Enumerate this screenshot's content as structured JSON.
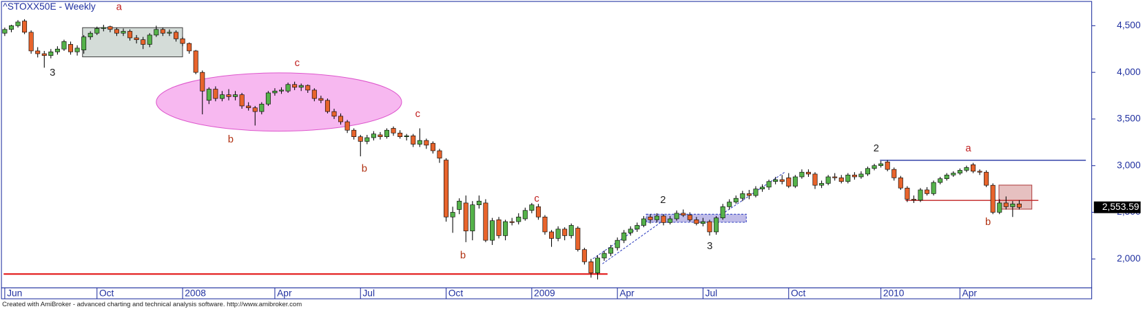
{
  "chart_data": {
    "type": "candlestick",
    "title": "^STOXX50E - Weekly",
    "annotations": [
      "a",
      "3",
      "c",
      "b",
      "c",
      "b",
      "c",
      "b",
      "2",
      "3",
      "2",
      "a",
      "b"
    ],
    "footer": "Created with AmiBroker - advanced charting and technical analysis software. http://www.amibroker.com",
    "up_color": "#55b24a",
    "down_color": "#e8642c",
    "ylim": [
      1690,
      4760
    ],
    "yticks": [
      {
        "value": 2000,
        "label": "2,000"
      },
      {
        "value": 2500,
        "label": "2,500"
      },
      {
        "value": 3000,
        "label": "3,000"
      },
      {
        "value": 3500,
        "label": "3,500"
      },
      {
        "value": 4000,
        "label": "4,000"
      },
      {
        "value": 4500,
        "label": "4,500"
      }
    ],
    "xlim": [
      -0.5,
      165
    ],
    "xticks": [
      {
        "value": 0,
        "label": "Jun"
      },
      {
        "value": 14,
        "label": "Oct"
      },
      {
        "value": 27,
        "label": "2008"
      },
      {
        "value": 41,
        "label": "Apr"
      },
      {
        "value": 54,
        "label": "Jul"
      },
      {
        "value": 67,
        "label": "Oct"
      },
      {
        "value": 80,
        "label": "2009"
      },
      {
        "value": 93,
        "label": "Apr"
      },
      {
        "value": 106,
        "label": "Jul"
      },
      {
        "value": 119,
        "label": "Oct"
      },
      {
        "value": 133,
        "label": "2010"
      },
      {
        "value": 145,
        "label": "Apr"
      }
    ],
    "last_value": {
      "value": 2553.59,
      "label": "2,553.59"
    },
    "ohlc": [
      [
        4420,
        4480,
        4390,
        4460
      ],
      [
        4460,
        4510,
        4430,
        4500
      ],
      [
        4500,
        4560,
        4480,
        4540
      ],
      [
        4550,
        4570,
        4410,
        4430
      ],
      [
        4430,
        4450,
        4200,
        4230
      ],
      [
        4230,
        4270,
        4160,
        4200
      ],
      [
        4200,
        4230,
        4050,
        4180
      ],
      [
        4180,
        4250,
        4150,
        4220
      ],
      [
        4220,
        4280,
        4190,
        4250
      ],
      [
        4250,
        4350,
        4230,
        4330
      ],
      [
        4300,
        4330,
        4190,
        4220
      ],
      [
        4220,
        4290,
        4180,
        4260
      ],
      [
        4240,
        4400,
        4200,
        4380
      ],
      [
        4380,
        4440,
        4350,
        4420
      ],
      [
        4420,
        4490,
        4400,
        4470
      ],
      [
        4470,
        4510,
        4440,
        4480
      ],
      [
        4490,
        4500,
        4430,
        4460
      ],
      [
        4460,
        4480,
        4390,
        4420
      ],
      [
        4420,
        4470,
        4390,
        4440
      ],
      [
        4440,
        4460,
        4340,
        4370
      ],
      [
        4370,
        4400,
        4310,
        4350
      ],
      [
        4350,
        4380,
        4250,
        4300
      ],
      [
        4300,
        4420,
        4270,
        4400
      ],
      [
        4400,
        4500,
        4380,
        4460
      ],
      [
        4460,
        4480,
        4390,
        4420
      ],
      [
        4420,
        4460,
        4390,
        4430
      ],
      [
        4430,
        4450,
        4330,
        4360
      ],
      [
        4360,
        4380,
        4280,
        4310
      ],
      [
        4310,
        4320,
        4200,
        4230
      ],
      [
        4230,
        4240,
        3980,
        4000
      ],
      [
        4000,
        4020,
        3550,
        3800
      ],
      [
        3700,
        3840,
        3660,
        3820
      ],
      [
        3820,
        3850,
        3690,
        3720
      ],
      [
        3720,
        3800,
        3690,
        3760
      ],
      [
        3760,
        3820,
        3700,
        3740
      ],
      [
        3740,
        3800,
        3700,
        3760
      ],
      [
        3760,
        3780,
        3610,
        3640
      ],
      [
        3640,
        3680,
        3590,
        3620
      ],
      [
        3620,
        3640,
        3430,
        3580
      ],
      [
        3580,
        3680,
        3550,
        3660
      ],
      [
        3660,
        3800,
        3640,
        3780
      ],
      [
        3780,
        3830,
        3750,
        3800
      ],
      [
        3800,
        3840,
        3770,
        3810
      ],
      [
        3800,
        3890,
        3780,
        3870
      ],
      [
        3870,
        3900,
        3810,
        3840
      ],
      [
        3840,
        3880,
        3800,
        3860
      ],
      [
        3860,
        3870,
        3780,
        3810
      ],
      [
        3810,
        3830,
        3690,
        3720
      ],
      [
        3720,
        3750,
        3670,
        3700
      ],
      [
        3700,
        3720,
        3560,
        3580
      ],
      [
        3580,
        3610,
        3500,
        3530
      ],
      [
        3530,
        3560,
        3440,
        3470
      ],
      [
        3470,
        3490,
        3350,
        3380
      ],
      [
        3380,
        3400,
        3280,
        3310
      ],
      [
        3310,
        3330,
        3100,
        3260
      ],
      [
        3260,
        3330,
        3230,
        3300
      ],
      [
        3300,
        3370,
        3270,
        3340
      ],
      [
        3330,
        3360,
        3280,
        3310
      ],
      [
        3310,
        3400,
        3290,
        3380
      ],
      [
        3400,
        3420,
        3320,
        3350
      ],
      [
        3350,
        3380,
        3290,
        3310
      ],
      [
        3310,
        3340,
        3270,
        3320
      ],
      [
        3320,
        3340,
        3200,
        3230
      ],
      [
        3230,
        3400,
        3200,
        3270
      ],
      [
        3270,
        3290,
        3180,
        3220
      ],
      [
        3240,
        3260,
        3130,
        3160
      ],
      [
        3160,
        3180,
        3030,
        3080
      ],
      [
        3060,
        3080,
        2400,
        2450
      ],
      [
        2450,
        2560,
        2280,
        2500
      ],
      [
        2530,
        2650,
        2480,
        2620
      ],
      [
        2600,
        2680,
        2180,
        2300
      ],
      [
        2300,
        2620,
        2200,
        2580
      ],
      [
        2580,
        2680,
        2540,
        2620
      ],
      [
        2600,
        2640,
        2180,
        2200
      ],
      [
        2200,
        2440,
        2150,
        2410
      ],
      [
        2420,
        2450,
        2220,
        2250
      ],
      [
        2250,
        2420,
        2200,
        2400
      ],
      [
        2400,
        2440,
        2360,
        2390
      ],
      [
        2400,
        2490,
        2370,
        2450
      ],
      [
        2430,
        2550,
        2410,
        2520
      ],
      [
        2520,
        2600,
        2490,
        2580
      ],
      [
        2560,
        2590,
        2420,
        2450
      ],
      [
        2450,
        2470,
        2260,
        2290
      ],
      [
        2290,
        2310,
        2130,
        2220
      ],
      [
        2220,
        2350,
        2190,
        2320
      ],
      [
        2320,
        2340,
        2200,
        2250
      ],
      [
        2250,
        2380,
        2220,
        2360
      ],
      [
        2330,
        2350,
        2080,
        2100
      ],
      [
        2100,
        2120,
        1940,
        1970
      ],
      [
        1970,
        2000,
        1800,
        1850
      ],
      [
        1850,
        2040,
        1780,
        2010
      ],
      [
        2010,
        2090,
        1980,
        2060
      ],
      [
        2060,
        2150,
        2030,
        2120
      ],
      [
        2120,
        2230,
        2090,
        2200
      ],
      [
        2200,
        2310,
        2170,
        2280
      ],
      [
        2280,
        2350,
        2250,
        2320
      ],
      [
        2320,
        2390,
        2290,
        2360
      ],
      [
        2360,
        2460,
        2340,
        2430
      ],
      [
        2450,
        2480,
        2380,
        2420
      ],
      [
        2420,
        2490,
        2390,
        2460
      ],
      [
        2460,
        2480,
        2360,
        2390
      ],
      [
        2390,
        2460,
        2370,
        2430
      ],
      [
        2430,
        2520,
        2410,
        2490
      ],
      [
        2490,
        2530,
        2450,
        2470
      ],
      [
        2470,
        2500,
        2400,
        2420
      ],
      [
        2420,
        2450,
        2360,
        2380
      ],
      [
        2380,
        2440,
        2350,
        2400
      ],
      [
        2400,
        2420,
        2250,
        2290
      ],
      [
        2290,
        2460,
        2260,
        2440
      ],
      [
        2440,
        2590,
        2420,
        2560
      ],
      [
        2560,
        2640,
        2530,
        2610
      ],
      [
        2610,
        2680,
        2590,
        2650
      ],
      [
        2650,
        2730,
        2620,
        2700
      ],
      [
        2700,
        2740,
        2640,
        2680
      ],
      [
        2680,
        2780,
        2660,
        2750
      ],
      [
        2750,
        2800,
        2720,
        2770
      ],
      [
        2770,
        2850,
        2740,
        2830
      ],
      [
        2830,
        2880,
        2800,
        2850
      ],
      [
        2850,
        2900,
        2800,
        2830
      ],
      [
        2870,
        2920,
        2760,
        2780
      ],
      [
        2780,
        2900,
        2760,
        2880
      ],
      [
        2880,
        2960,
        2860,
        2930
      ],
      [
        2930,
        2960,
        2880,
        2910
      ],
      [
        2910,
        2930,
        2750,
        2790
      ],
      [
        2790,
        2840,
        2760,
        2810
      ],
      [
        2810,
        2900,
        2790,
        2880
      ],
      [
        2880,
        2920,
        2840,
        2870
      ],
      [
        2870,
        2900,
        2810,
        2830
      ],
      [
        2830,
        2920,
        2810,
        2900
      ],
      [
        2900,
        2930,
        2850,
        2880
      ],
      [
        2880,
        2940,
        2860,
        2910
      ],
      [
        2910,
        2990,
        2890,
        2970
      ],
      [
        2970,
        3020,
        2950,
        3000
      ],
      [
        3000,
        3050,
        2980,
        3020
      ],
      [
        3040,
        3060,
        2940,
        2960
      ],
      [
        2960,
        2980,
        2840,
        2870
      ],
      [
        2870,
        2890,
        2740,
        2760
      ],
      [
        2760,
        2780,
        2610,
        2640
      ],
      [
        2640,
        2680,
        2600,
        2630
      ],
      [
        2630,
        2760,
        2610,
        2740
      ],
      [
        2740,
        2770,
        2680,
        2700
      ],
      [
        2700,
        2840,
        2680,
        2820
      ],
      [
        2820,
        2880,
        2800,
        2860
      ],
      [
        2860,
        2920,
        2840,
        2900
      ],
      [
        2900,
        2940,
        2880,
        2920
      ],
      [
        2920,
        2970,
        2900,
        2950
      ],
      [
        2950,
        3000,
        2930,
        2980
      ],
      [
        3010,
        3030,
        2920,
        2940
      ],
      [
        2940,
        2960,
        2900,
        2930
      ],
      [
        2930,
        2950,
        2770,
        2790
      ],
      [
        2790,
        2810,
        2480,
        2500
      ],
      [
        2500,
        2640,
        2480,
        2600
      ],
      [
        2600,
        2670,
        2530,
        2560
      ],
      [
        2560,
        2620,
        2450,
        2590
      ],
      [
        2590,
        2630,
        2530,
        2553.59
      ]
    ]
  }
}
